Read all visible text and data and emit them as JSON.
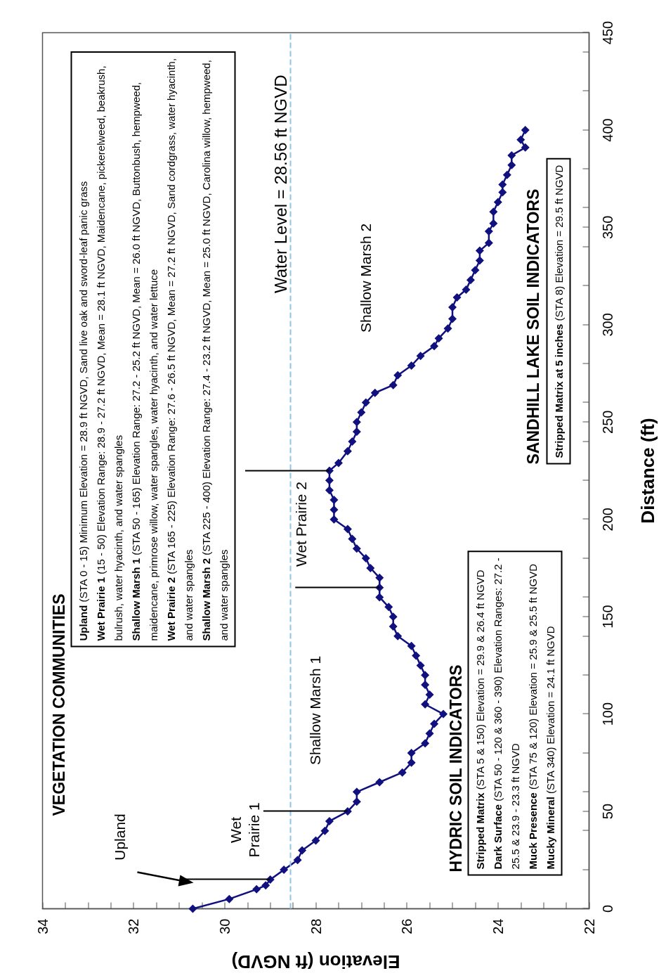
{
  "chart_data": {
    "type": "line",
    "xlabel": "Elevation (ft NGVD)",
    "ylabel": "Distance (ft)",
    "xlim": [
      34,
      22
    ],
    "xticks": [
      34,
      32,
      30,
      28,
      26,
      24,
      22
    ],
    "ylim": [
      0,
      450
    ],
    "yticks": [
      0,
      50,
      100,
      150,
      200,
      250,
      300,
      350,
      400,
      450
    ],
    "marker": "diamond",
    "x": [
      30.7,
      29.9,
      29.3,
      29.1,
      29.0,
      28.7,
      28.4,
      28.3,
      28.0,
      27.8,
      27.7,
      27.3,
      27.1,
      27.1,
      26.6,
      26.1,
      25.9,
      25.9,
      25.6,
      25.5,
      25.4,
      25.2,
      25.6,
      25.5,
      25.6,
      25.6,
      25.7,
      25.8,
      25.9,
      26.2,
      26.3,
      26.3,
      26.4,
      26.6,
      26.6,
      26.6,
      26.8,
      26.9,
      27.1,
      27.2,
      27.3,
      27.6,
      27.6,
      27.6,
      27.7,
      27.7,
      27.7,
      27.5,
      27.3,
      27.2,
      27.1,
      27.1,
      27.0,
      26.9,
      26.7,
      26.3,
      26.2,
      25.9,
      25.7,
      25.4,
      25.3,
      25.1,
      25.0,
      25.0,
      24.9,
      24.7,
      24.6,
      24.5,
      24.4,
      24.4,
      24.2,
      24.2,
      24.1,
      24.1,
      24.0,
      23.9,
      23.9,
      23.8,
      23.7,
      23.7,
      23.4,
      23.5,
      23.4
    ],
    "series": [
      {
        "color": "#10107f",
        "values": [
          0,
          5,
          10,
          12,
          15,
          20,
          25,
          30,
          35,
          40,
          45,
          50,
          55,
          60,
          65,
          70,
          75,
          80,
          85,
          90,
          95,
          100,
          105,
          110,
          115,
          120,
          125,
          130,
          135,
          140,
          145,
          150,
          155,
          160,
          165,
          170,
          175,
          180,
          185,
          190,
          195,
          200,
          205,
          210,
          215,
          220,
          225,
          229,
          235,
          240,
          245,
          250,
          255,
          260,
          265,
          269,
          274,
          279,
          284,
          289,
          293,
          298,
          303,
          309,
          314,
          318,
          323,
          328,
          333,
          338,
          342,
          348,
          352,
          358,
          363,
          368,
          372,
          377,
          382,
          387,
          391,
          395,
          400
        ]
      }
    ],
    "ref_lines": [
      {
        "axis": "x",
        "value": 28.56,
        "label": "Water Level = 28.56 ft NGVD",
        "color": "#8fc3ea",
        "line_style": "dashed"
      },
      {
        "axis": "y",
        "value": 15,
        "color": "#000000"
      },
      {
        "axis": "y",
        "value": 50,
        "color": "#000000"
      },
      {
        "axis": "y",
        "value": 165,
        "color": "#000000"
      },
      {
        "axis": "y",
        "value": 225,
        "color": "#000000"
      }
    ],
    "annotations": [
      "VEGETATION COMMUNITIES",
      "Upland (STA 0 - 15) Minimum Elevation = 28.9 ft NGVD, Sand live oak and sword-leaf panic grass",
      "Wet Prairie 1 (15 - 50) Elevation Range: 28.9 - 27.2 ft NGVD, Mean = 28.1 ft NGVD, Maidencane, pickerelweed, beakrush, bulrush, water hyacinth, and water spangles",
      "Shallow Marsh 1 (STA 50 - 165) Elevation Range: 27.2 - 25.2 ft NGVD, Mean = 26.0 ft NGVD, Buttonbush, hempweed, maidencane, primrose willow, water spangles, water hyacinth, and water lettuce",
      "Wet Prairie 2 (STA 165 - 225) Elevation Range: 27.6 - 26.5 ft NGVD, Mean = 27.2 ft NGVD, Sand cordgrass, water hyacinth, and water spangles",
      "Shallow Marsh 2 (STA 225 - 400) Elevation Range: 27.4 - 23.2 ft NGVD, Mean = 25.0 ft NGVD, Carolina willow, hempweed, and water spangles",
      "HYDRIC SOIL INDICATORS",
      "Stripped Matrix (STA 5 & 150) Elevation = 29.9 & 26.4 ft NGVD",
      "Dark Surface (STA 50 - 120 & 360 - 390) Elevation Ranges: 27.2 - 25.5 & 23.9 - 23.3 ft NGVD",
      "Muck Presence (STA 75 & 120) Elevation = 25.9 & 25.5 ft NGVD",
      "Mucky Mineral (STA 340) Elevation = 24.1 ft NGVD",
      "SANDHILL LAKE SOIL INDICATORS",
      "Stripped Matrix at 5 inches (STA 8) Elevation = 29.5 ft NGVD",
      "Upland",
      "Wet\nPrairie 1",
      "Shallow Marsh 1",
      "Wet Prairie 2",
      "Shallow Marsh 2"
    ]
  }
}
